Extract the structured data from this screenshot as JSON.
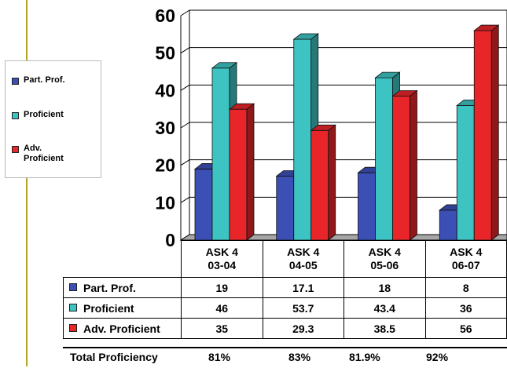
{
  "chart_data": {
    "type": "bar",
    "categories": [
      [
        "ASK 4",
        "03-04"
      ],
      [
        "ASK 4",
        "04-05"
      ],
      [
        "ASK 4",
        "05-06"
      ],
      [
        "ASK 4",
        "06-07"
      ]
    ],
    "series": [
      {
        "name": "Part. Prof.",
        "values": [
          19,
          17.1,
          18,
          8
        ],
        "color": "#3c4fb4"
      },
      {
        "name": "Proficient",
        "values": [
          46,
          53.7,
          43.4,
          36
        ],
        "color": "#3ec3c3"
      },
      {
        "name": "Adv. Proficient",
        "values": [
          35,
          29.3,
          38.5,
          56
        ],
        "color": "#e8262a"
      }
    ],
    "ylim": [
      0,
      60
    ],
    "yticks": [
      0,
      10,
      20,
      30,
      40,
      50,
      60
    ],
    "grid": true,
    "legend": "left"
  },
  "table": {
    "rows": [
      {
        "label": "Part. Prof.",
        "cells": [
          "19",
          "17.1",
          "18",
          "8"
        ]
      },
      {
        "label": "Proficient",
        "cells": [
          "46",
          "53.7",
          "43.4",
          "36"
        ]
      },
      {
        "label": "Adv. Proficient",
        "cells": [
          "35",
          "29.3",
          "38.5",
          "56"
        ]
      }
    ],
    "total": {
      "label": "Total Proficiency",
      "values": [
        "81%",
        "83%",
        "81.9%",
        "92%"
      ]
    }
  },
  "legend": {
    "items": [
      "Part. Prof.",
      "Proficient",
      "Adv.\nProficient"
    ]
  }
}
